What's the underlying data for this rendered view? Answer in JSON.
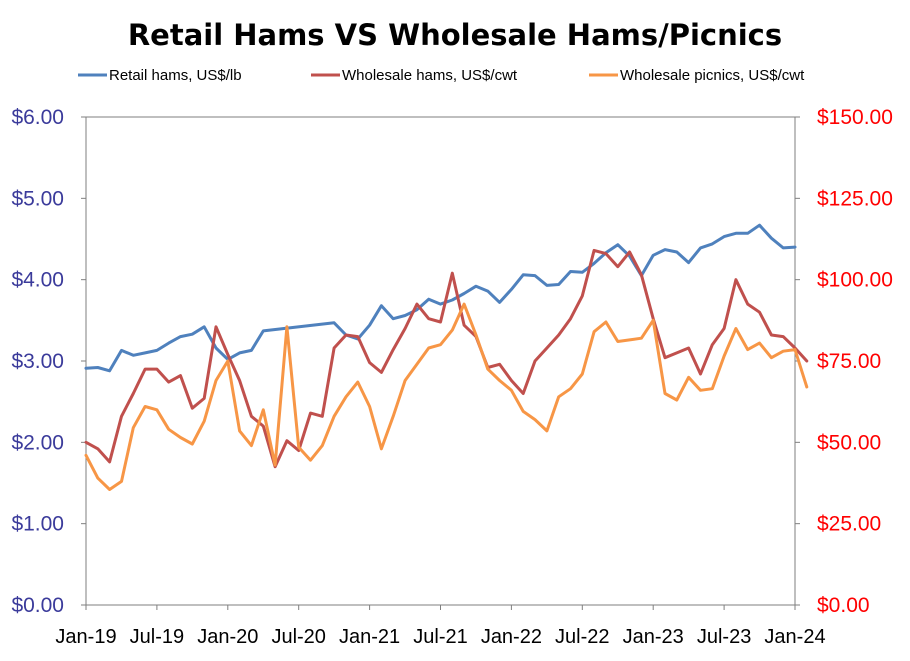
{
  "chart_data": {
    "type": "line",
    "title": "Retail Hams VS Wholesale Hams/Picnics",
    "x_tick_labels": [
      "Jan-19",
      "Jul-19",
      "Jan-20",
      "Jul-20",
      "Jan-21",
      "Jul-21",
      "Jan-22",
      "Jul-22",
      "Jan-23",
      "Jul-23",
      "Jan-24"
    ],
    "x_range": [
      "2019-01",
      "2024-01"
    ],
    "y_left": {
      "range": [
        0,
        6
      ],
      "ticks": [
        0,
        1,
        2,
        3,
        4,
        5,
        6
      ],
      "tick_labels": [
        "$0.00",
        "$1.00",
        "$2.00",
        "$3.00",
        "$4.00",
        "$5.00",
        "$6.00"
      ],
      "color": "#3b3b9b"
    },
    "y_right": {
      "range": [
        0,
        150
      ],
      "ticks": [
        0,
        25,
        50,
        75,
        100,
        125,
        150
      ],
      "tick_labels": [
        "$0.00",
        "$25.00",
        "$50.00",
        "$75.00",
        "$100.00",
        "$125.00",
        "$150.00"
      ],
      "color": "#ff0000"
    },
    "legend_position": "top",
    "grid": false,
    "series": [
      {
        "name": "Retail hams, US$/lb",
        "axis": "left",
        "color": "#4f81bd",
        "points": [
          [
            "2019-01",
            2.91
          ],
          [
            "2019-02",
            2.92
          ],
          [
            "2019-03",
            2.88
          ],
          [
            "2019-04",
            3.13
          ],
          [
            "2019-05",
            3.07
          ],
          [
            "2019-06",
            3.1
          ],
          [
            "2019-07",
            3.13
          ],
          [
            "2019-08",
            3.22
          ],
          [
            "2019-09",
            3.3
          ],
          [
            "2019-10",
            3.33
          ],
          [
            "2019-11",
            3.42
          ],
          [
            "2019-12",
            3.16
          ],
          [
            "2020-01",
            3.02
          ],
          [
            "2020-02",
            3.1
          ],
          [
            "2020-03",
            3.13
          ],
          [
            "2020-04",
            3.37
          ],
          [
            "2020-10",
            3.47
          ],
          [
            "2020-11",
            3.32
          ],
          [
            "2020-12",
            3.27
          ],
          [
            "2021-01",
            3.44
          ],
          [
            "2021-02",
            3.68
          ],
          [
            "2021-03",
            3.52
          ],
          [
            "2021-04",
            3.56
          ],
          [
            "2021-05",
            3.63
          ],
          [
            "2021-06",
            3.76
          ],
          [
            "2021-07",
            3.7
          ],
          [
            "2021-08",
            3.75
          ],
          [
            "2021-09",
            3.83
          ],
          [
            "2021-10",
            3.92
          ],
          [
            "2021-11",
            3.86
          ],
          [
            "2021-12",
            3.72
          ],
          [
            "2022-01",
            3.88
          ],
          [
            "2022-02",
            4.06
          ],
          [
            "2022-03",
            4.05
          ],
          [
            "2022-04",
            3.93
          ],
          [
            "2022-05",
            3.94
          ],
          [
            "2022-06",
            4.1
          ],
          [
            "2022-07",
            4.09
          ],
          [
            "2022-08",
            4.2
          ],
          [
            "2022-09",
            4.33
          ],
          [
            "2022-10",
            4.43
          ],
          [
            "2022-11",
            4.29
          ],
          [
            "2022-12",
            4.05
          ],
          [
            "2023-01",
            4.3
          ],
          [
            "2023-02",
            4.37
          ],
          [
            "2023-03",
            4.34
          ],
          [
            "2023-04",
            4.21
          ],
          [
            "2023-05",
            4.39
          ],
          [
            "2023-06",
            4.44
          ],
          [
            "2023-07",
            4.53
          ],
          [
            "2023-08",
            4.57
          ],
          [
            "2023-09",
            4.57
          ],
          [
            "2023-10",
            4.67
          ],
          [
            "2023-11",
            4.51
          ],
          [
            "2023-12",
            4.39
          ],
          [
            "2024-01",
            4.4
          ]
        ]
      },
      {
        "name": "Wholesale hams, US$/cwt",
        "axis": "right",
        "color": "#c0504d",
        "points": [
          [
            "2019-01",
            50
          ],
          [
            "2019-02",
            48
          ],
          [
            "2019-03",
            44
          ],
          [
            "2019-04",
            58
          ],
          [
            "2019-05",
            65
          ],
          [
            "2019-06",
            72.5
          ],
          [
            "2019-07",
            72.5
          ],
          [
            "2019-08",
            68.5
          ],
          [
            "2019-09",
            70.5
          ],
          [
            "2019-10",
            60.5
          ],
          [
            "2019-11",
            63.5
          ],
          [
            "2019-12",
            85.5
          ],
          [
            "2020-01",
            77
          ],
          [
            "2020-02",
            69
          ],
          [
            "2020-03",
            58
          ],
          [
            "2020-04",
            55
          ],
          [
            "2020-05",
            42.5
          ],
          [
            "2020-06",
            50.5
          ],
          [
            "2020-07",
            47.5
          ],
          [
            "2020-08",
            59
          ],
          [
            "2020-09",
            58
          ],
          [
            "2020-10",
            79
          ],
          [
            "2020-11",
            83
          ],
          [
            "2020-12",
            82.5
          ],
          [
            "2021-01",
            74.5
          ],
          [
            "2021-02",
            71.5
          ],
          [
            "2021-03",
            78.5
          ],
          [
            "2021-04",
            85
          ],
          [
            "2021-05",
            92.5
          ],
          [
            "2021-06",
            88
          ],
          [
            "2021-07",
            87
          ],
          [
            "2021-08",
            102
          ],
          [
            "2021-09",
            86
          ],
          [
            "2021-10",
            82.5
          ],
          [
            "2021-11",
            73
          ],
          [
            "2021-12",
            74
          ],
          [
            "2022-01",
            69
          ],
          [
            "2022-02",
            65
          ],
          [
            "2022-03",
            75
          ],
          [
            "2022-04",
            79
          ],
          [
            "2022-05",
            83
          ],
          [
            "2022-06",
            88
          ],
          [
            "2022-07",
            95
          ],
          [
            "2022-08",
            109
          ],
          [
            "2022-09",
            108
          ],
          [
            "2022-10",
            104
          ],
          [
            "2022-11",
            108.5
          ],
          [
            "2022-12",
            101.5
          ],
          [
            "2023-01",
            88
          ],
          [
            "2023-02",
            76
          ],
          [
            "2023-03",
            77.5
          ],
          [
            "2023-04",
            79
          ],
          [
            "2023-05",
            71
          ],
          [
            "2023-06",
            80
          ],
          [
            "2023-07",
            85
          ],
          [
            "2023-08",
            100
          ],
          [
            "2023-09",
            92.5
          ],
          [
            "2023-10",
            90
          ],
          [
            "2023-11",
            83
          ],
          [
            "2023-12",
            82.5
          ],
          [
            "2024-01",
            79
          ],
          [
            "2024-02",
            75
          ]
        ]
      },
      {
        "name": "Wholesale picnics, US$/cwt",
        "axis": "right",
        "color": "#f79646",
        "points": [
          [
            "2019-01",
            46
          ],
          [
            "2019-02",
            39
          ],
          [
            "2019-03",
            35.5
          ],
          [
            "2019-04",
            38
          ],
          [
            "2019-05",
            54.5
          ],
          [
            "2019-06",
            61
          ],
          [
            "2019-07",
            60
          ],
          [
            "2019-08",
            54
          ],
          [
            "2019-09",
            51.5
          ],
          [
            "2019-10",
            49.5
          ],
          [
            "2019-11",
            56.5
          ],
          [
            "2019-12",
            69
          ],
          [
            "2020-01",
            75
          ],
          [
            "2020-02",
            53.5
          ],
          [
            "2020-03",
            49
          ],
          [
            "2020-04",
            60
          ],
          [
            "2020-05",
            43
          ],
          [
            "2020-06",
            85.5
          ],
          [
            "2020-07",
            48.5
          ],
          [
            "2020-08",
            44.5
          ],
          [
            "2020-09",
            49
          ],
          [
            "2020-10",
            58
          ],
          [
            "2020-11",
            64
          ],
          [
            "2020-12",
            68.5
          ],
          [
            "2021-01",
            61
          ],
          [
            "2021-02",
            48
          ],
          [
            "2021-03",
            58
          ],
          [
            "2021-04",
            69
          ],
          [
            "2021-05",
            74
          ],
          [
            "2021-06",
            79
          ],
          [
            "2021-07",
            80
          ],
          [
            "2021-08",
            84.5
          ],
          [
            "2021-09",
            92.5
          ],
          [
            "2021-10",
            83
          ],
          [
            "2021-11",
            72.5
          ],
          [
            "2021-12",
            69
          ],
          [
            "2022-01",
            66
          ],
          [
            "2022-02",
            59.5
          ],
          [
            "2022-03",
            57
          ],
          [
            "2022-04",
            53.5
          ],
          [
            "2022-05",
            64
          ],
          [
            "2022-06",
            66.5
          ],
          [
            "2022-07",
            71
          ],
          [
            "2022-08",
            84
          ],
          [
            "2022-09",
            87
          ],
          [
            "2022-10",
            81
          ],
          [
            "2022-11",
            81.5
          ],
          [
            "2022-12",
            82
          ],
          [
            "2023-01",
            87.5
          ],
          [
            "2023-02",
            65
          ],
          [
            "2023-03",
            63
          ],
          [
            "2023-04",
            70
          ],
          [
            "2023-05",
            66
          ],
          [
            "2023-06",
            66.5
          ],
          [
            "2023-07",
            76.5
          ],
          [
            "2023-08",
            85
          ],
          [
            "2023-09",
            78.5
          ],
          [
            "2023-10",
            80.5
          ],
          [
            "2023-11",
            76
          ],
          [
            "2023-12",
            78
          ],
          [
            "2024-01",
            78.5
          ],
          [
            "2024-02",
            67
          ]
        ]
      }
    ]
  }
}
